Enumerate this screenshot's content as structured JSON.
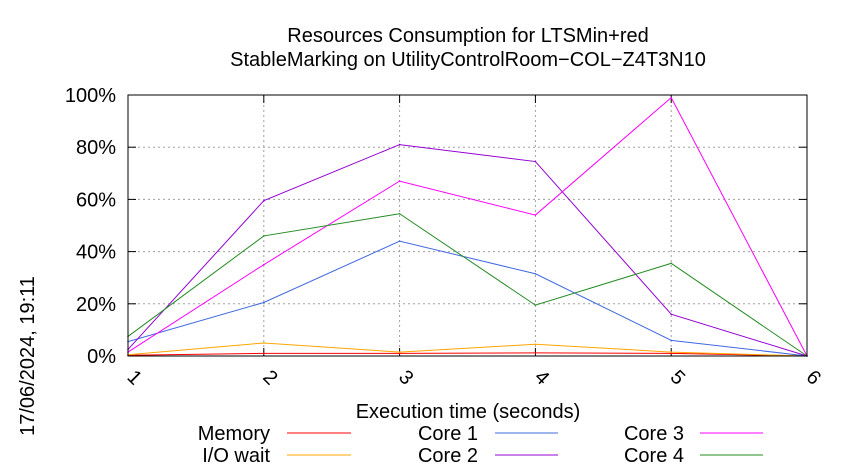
{
  "side_timestamp": "17/06/2024, 19:11",
  "chart_data": {
    "type": "line",
    "title_lines": [
      "Resources Consumption for LTSMin+red",
      "StableMarking on UtilityControlRoom−COL−Z4T3N10"
    ],
    "xlabel": "Execution time (seconds)",
    "ylabel": "",
    "x": [
      1,
      2,
      3,
      4,
      5,
      6
    ],
    "x_tick_labels": [
      "1",
      "2",
      "3",
      "4",
      "5",
      "6"
    ],
    "xlim": [
      1,
      6
    ],
    "ylim": [
      0,
      100
    ],
    "y_ticks": [
      0,
      20,
      40,
      60,
      80,
      100
    ],
    "y_tick_labels": [
      "0%",
      "20%",
      "40%",
      "60%",
      "80%",
      "100%"
    ],
    "grid": true,
    "legend_placement": "bottom",
    "series": [
      {
        "name": "Memory",
        "color": "#ff0000",
        "values": [
          0.3,
          1.0,
          1.0,
          1.2,
          1.0,
          0.0
        ]
      },
      {
        "name": "I/O wait",
        "color": "#ffa500",
        "values": [
          0.5,
          5.0,
          1.5,
          4.5,
          1.5,
          0.0
        ]
      },
      {
        "name": "Core 1",
        "color": "#4169e1",
        "values": [
          5.5,
          20.5,
          44.0,
          31.5,
          6.0,
          0.0
        ]
      },
      {
        "name": "Core 2",
        "color": "#9400d3",
        "values": [
          2.5,
          59.5,
          81.0,
          74.5,
          16.0,
          0.0
        ]
      },
      {
        "name": "Core 3",
        "color": "#ff00ff",
        "values": [
          1.5,
          35.0,
          67.0,
          54.0,
          99.0,
          0.0
        ]
      },
      {
        "name": "Core 4",
        "color": "#228b22",
        "values": [
          7.5,
          46.0,
          54.5,
          19.5,
          35.5,
          0.0
        ]
      }
    ]
  }
}
